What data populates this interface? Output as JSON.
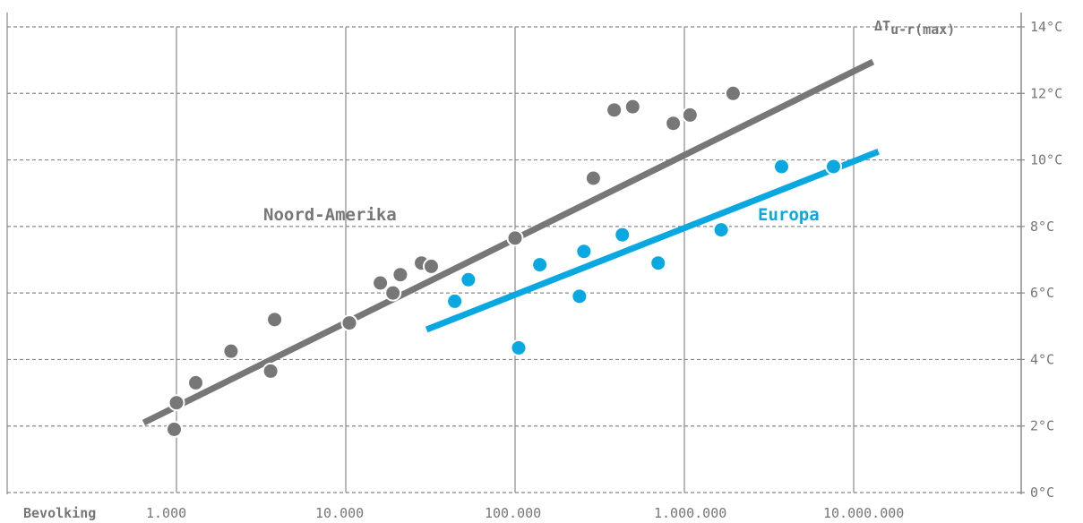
{
  "chart_data": {
    "type": "scatter",
    "x_scale": "log",
    "xlim": [
      1,
      20000000
    ],
    "ylim": [
      0,
      14
    ],
    "grid": true,
    "xlabel": "Bevolking",
    "ylabel": "ΔT",
    "ylabel_sub": "u-r(max)",
    "x_ticks": [
      {
        "value": 1000,
        "label": "1.000"
      },
      {
        "value": 10000,
        "label": "10.000"
      },
      {
        "value": 100000,
        "label": "100.000"
      },
      {
        "value": 1000000,
        "label": "1.000.000"
      },
      {
        "value": 10000000,
        "label": "10.000.000"
      }
    ],
    "y_ticks": [
      {
        "value": 0,
        "label": "0°C"
      },
      {
        "value": 2,
        "label": "2°C"
      },
      {
        "value": 4,
        "label": "4°C"
      },
      {
        "value": 6,
        "label": "6°C"
      },
      {
        "value": 8,
        "label": "8°C"
      },
      {
        "value": 10,
        "label": "10°C"
      },
      {
        "value": 12,
        "label": "12°C"
      },
      {
        "value": 14,
        "label": "14°C"
      }
    ],
    "series": [
      {
        "name": "Noord-Amerika",
        "color": "#777777",
        "points": [
          [
            970,
            1.9
          ],
          [
            1000,
            2.7
          ],
          [
            1300,
            3.3
          ],
          [
            2100,
            4.25
          ],
          [
            3600,
            3.65
          ],
          [
            3800,
            5.2
          ],
          [
            10500,
            5.1
          ],
          [
            16000,
            6.3
          ],
          [
            19000,
            6.0
          ],
          [
            21000,
            6.55
          ],
          [
            28000,
            6.9
          ],
          [
            32000,
            6.8
          ],
          [
            100000,
            7.65
          ],
          [
            290000,
            9.45
          ],
          [
            385000,
            11.5
          ],
          [
            495000,
            11.6
          ],
          [
            860000,
            11.1
          ],
          [
            1080000,
            11.35
          ],
          [
            1940000,
            12.0
          ]
        ],
        "trend": [
          [
            640,
            2.1
          ],
          [
            13000000,
            12.95
          ]
        ]
      },
      {
        "name": "Europa",
        "color": "#0aa8e0",
        "points": [
          [
            44000,
            5.75
          ],
          [
            53000,
            6.4
          ],
          [
            105000,
            4.35
          ],
          [
            140000,
            6.85
          ],
          [
            240000,
            5.9
          ],
          [
            255000,
            7.25
          ],
          [
            430000,
            7.75
          ],
          [
            700000,
            6.9
          ],
          [
            1650000,
            7.9
          ],
          [
            3750000,
            9.8
          ],
          [
            7600000,
            9.8
          ]
        ],
        "trend": [
          [
            30000,
            4.9
          ],
          [
            14000000,
            10.25
          ]
        ]
      }
    ]
  }
}
